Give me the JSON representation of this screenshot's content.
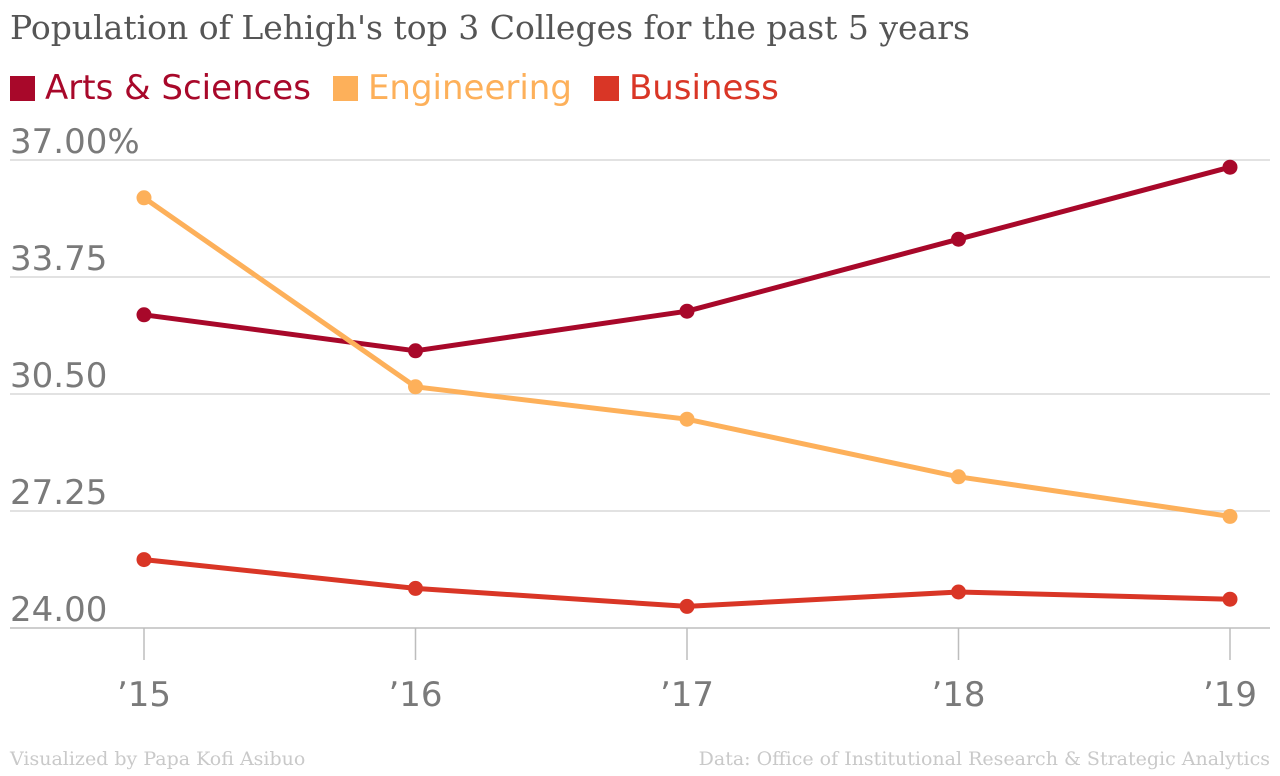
{
  "chart_data": {
    "type": "line",
    "title": "Population of Lehigh's top 3 Colleges for the past 5 years",
    "categories": [
      "’15",
      "’16",
      "’17",
      "’18",
      "’19"
    ],
    "ylim": [
      24,
      37
    ],
    "yticks": [
      "24.00",
      "27.25",
      "30.50",
      "33.75",
      "37.00%"
    ],
    "grid": true,
    "legend_position": "top-left",
    "series": [
      {
        "name": "Arts & Sciences",
        "color": "#a8082a",
        "values": [
          32.7,
          31.7,
          32.8,
          34.8,
          36.8
        ]
      },
      {
        "name": "Engineering",
        "color": "#fdb05a",
        "values": [
          35.95,
          30.7,
          29.8,
          28.2,
          27.1
        ]
      },
      {
        "name": "Business",
        "color": "#d93626",
        "values": [
          25.9,
          25.1,
          24.6,
          25.0,
          24.8
        ]
      }
    ]
  },
  "footer": {
    "credit": "Visualized by Papa Kofi Asibuo",
    "source": "Data: Office of Institutional Research & Strategic Analytics"
  }
}
